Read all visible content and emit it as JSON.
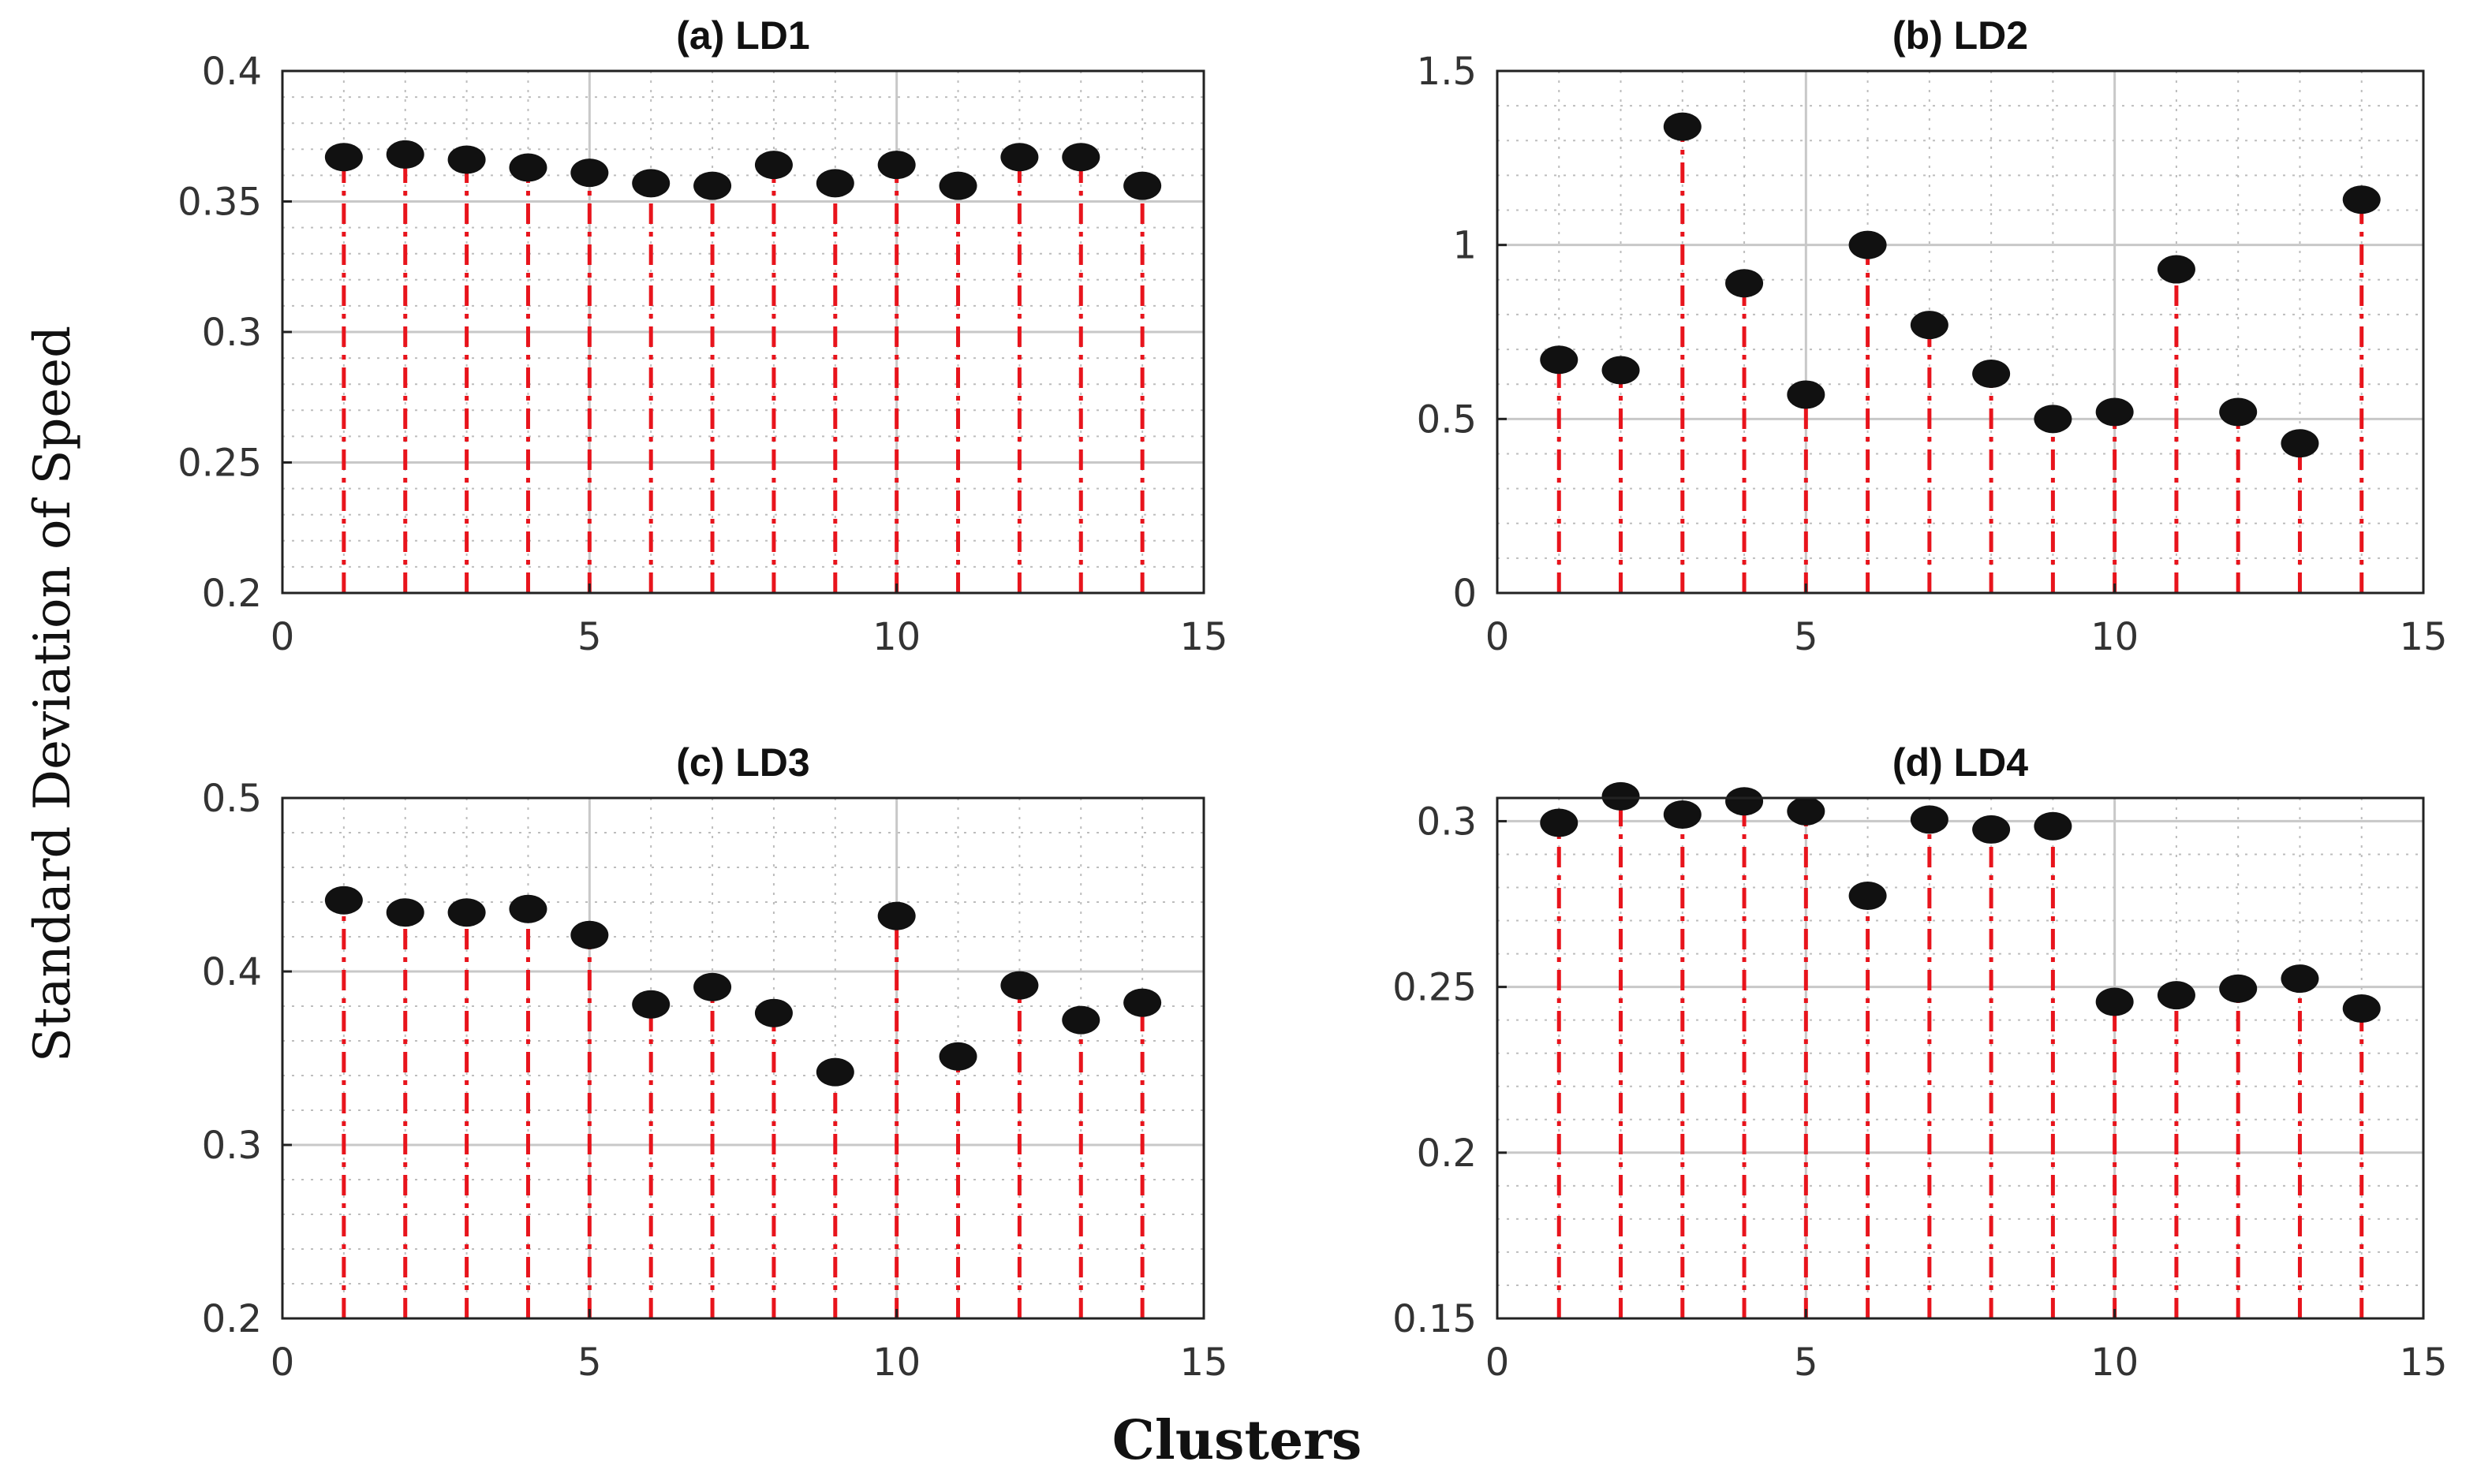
{
  "figure": {
    "xlabel": "Clusters",
    "ylabel": "Standard Deviation of Speed",
    "colors": {
      "stem": "#e8141c",
      "marker": "#111111",
      "grid_major": "#c8c8c8",
      "grid_minor": "#bdbdbd",
      "axis": "#222222"
    }
  },
  "chart_data": [
    {
      "type": "stem",
      "title": "(a) LD1",
      "x": [
        1,
        2,
        3,
        4,
        5,
        6,
        7,
        8,
        9,
        10,
        11,
        12,
        13,
        14
      ],
      "values": [
        0.367,
        0.368,
        0.366,
        0.363,
        0.361,
        0.357,
        0.356,
        0.364,
        0.357,
        0.364,
        0.356,
        0.367,
        0.367,
        0.356
      ],
      "xlim": [
        0,
        15
      ],
      "ylim": [
        0.2,
        0.4
      ],
      "xticks": [
        0,
        5,
        10,
        15
      ],
      "yticks": [
        0.2,
        0.25,
        0.3,
        0.35,
        0.4
      ],
      "xtick_labels": [
        "0",
        "5",
        "10",
        "15"
      ],
      "ytick_labels": [
        "0.2",
        "0.25",
        "0.3",
        "0.35",
        "0.4"
      ],
      "grid": true
    },
    {
      "type": "stem",
      "title": "(b) LD2",
      "x": [
        1,
        2,
        3,
        4,
        5,
        6,
        7,
        8,
        9,
        10,
        11,
        12,
        13,
        14
      ],
      "values": [
        0.67,
        0.64,
        1.34,
        0.89,
        0.57,
        1.0,
        0.77,
        0.63,
        0.5,
        0.52,
        0.93,
        0.52,
        0.43,
        1.13
      ],
      "xlim": [
        0,
        15
      ],
      "ylim": [
        0,
        1.5
      ],
      "xticks": [
        0,
        5,
        10,
        15
      ],
      "yticks": [
        0,
        0.5,
        1,
        1.5
      ],
      "xtick_labels": [
        "0",
        "5",
        "10",
        "15"
      ],
      "ytick_labels": [
        "0",
        "0.5",
        "1",
        "1.5"
      ],
      "grid": true
    },
    {
      "type": "stem",
      "title": "(c) LD3",
      "x": [
        1,
        2,
        3,
        4,
        5,
        6,
        7,
        8,
        9,
        10,
        11,
        12,
        13,
        14
      ],
      "values": [
        0.441,
        0.434,
        0.434,
        0.436,
        0.421,
        0.381,
        0.391,
        0.376,
        0.342,
        0.432,
        0.351,
        0.392,
        0.372,
        0.382
      ],
      "xlim": [
        0,
        15
      ],
      "ylim": [
        0.2,
        0.5
      ],
      "xticks": [
        0,
        5,
        10,
        15
      ],
      "yticks": [
        0.2,
        0.3,
        0.4,
        0.5
      ],
      "xtick_labels": [
        "0",
        "5",
        "10",
        "15"
      ],
      "ytick_labels": [
        "0.2",
        "0.3",
        "0.4",
        "0.5"
      ],
      "grid": true
    },
    {
      "type": "stem",
      "title": "(d) LD4",
      "x": [
        1,
        2,
        3,
        4,
        5,
        6,
        7,
        8,
        9,
        10,
        11,
        12,
        13,
        14
      ],
      "values": [
        0.2995,
        0.3075,
        0.302,
        0.306,
        0.303,
        0.2775,
        0.3005,
        0.2975,
        0.2985,
        0.2455,
        0.2475,
        0.2495,
        0.2525,
        0.2435
      ],
      "xlim": [
        0,
        15
      ],
      "ylim": [
        0.15,
        0.307
      ],
      "xticks": [
        0,
        5,
        10,
        15
      ],
      "yticks": [
        0.15,
        0.2,
        0.25,
        0.3
      ],
      "xtick_labels": [
        "0",
        "5",
        "10",
        "15"
      ],
      "ytick_labels": [
        "0.15",
        "0.2",
        "0.25",
        "0.3"
      ],
      "grid": true
    }
  ]
}
